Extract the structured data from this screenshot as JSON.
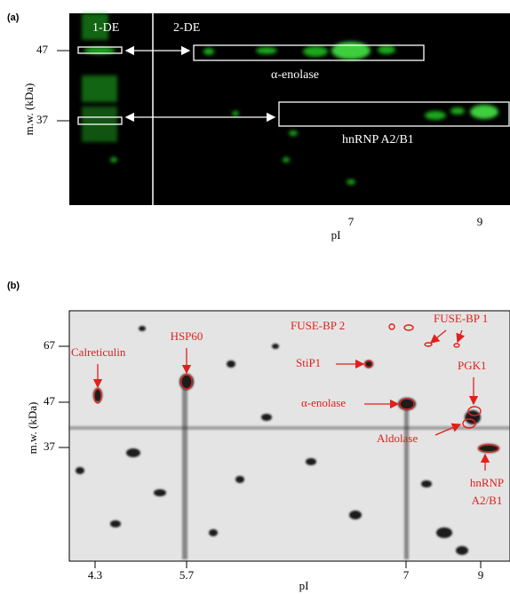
{
  "panel_a": {
    "label": "(a)",
    "y_label": "m.w. (kDa)",
    "x_label": "pI",
    "y_ticks": [
      "47",
      "37"
    ],
    "x_ticks": [
      "7",
      "9"
    ],
    "lanes": [
      "1-DE",
      "2-DE"
    ],
    "annotations": [
      "α-enolase",
      "hnRNP A2/B1"
    ]
  },
  "panel_b": {
    "label": "(b)",
    "y_label": "m.w. (kDa)",
    "x_label": "pI",
    "y_ticks": [
      "67",
      "47",
      "37"
    ],
    "x_ticks": [
      "4.3",
      "5.7",
      "7",
      "9"
    ],
    "annotations": [
      "Calreticulin",
      "HSP60",
      "FUSE-BP 2",
      "FUSE-BP 1",
      "StiP1",
      "α-enolase",
      "PGK1",
      "Aldolase",
      [
        "hnRNP",
        "A2/B1"
      ]
    ]
  }
}
